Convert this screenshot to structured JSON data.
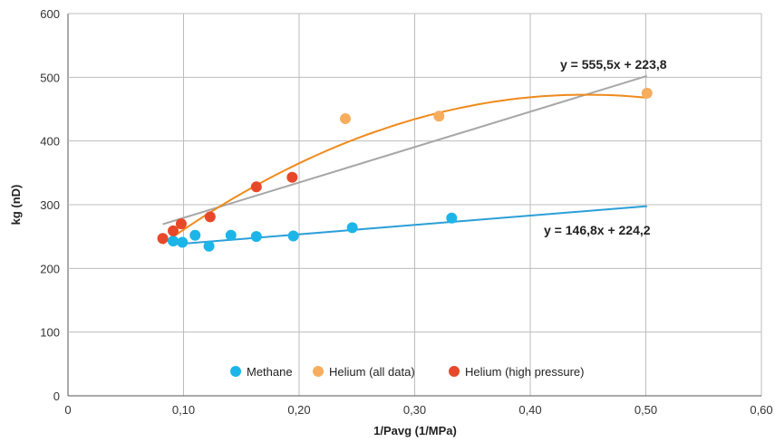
{
  "chart_data": {
    "type": "scatter",
    "title": "",
    "xlabel": "1/Pavg (1/MPa)",
    "ylabel": "kg (nD)",
    "xlim": [
      0,
      0.6
    ],
    "ylim": [
      0,
      600
    ],
    "x_ticks": [
      "0",
      "0,10",
      "0,20",
      "0,30",
      "0,40",
      "0,50",
      "0,60"
    ],
    "y_ticks": [
      "0",
      "100",
      "200",
      "300",
      "400",
      "500",
      "600"
    ],
    "grid": "vertical and horizontal",
    "legend_position": "bottom inside plot",
    "series": [
      {
        "name": "Methane",
        "color": "#1cb5e8",
        "points": [
          [
            0.091,
            243
          ],
          [
            0.099,
            241
          ],
          [
            0.11,
            252
          ],
          [
            0.122,
            235
          ],
          [
            0.141,
            252
          ],
          [
            0.163,
            250
          ],
          [
            0.195,
            251
          ],
          [
            0.246,
            264
          ],
          [
            0.332,
            279
          ]
        ]
      },
      {
        "name": "Helium (all data)",
        "color": "#f7ad5e",
        "points": [
          [
            0.24,
            435
          ],
          [
            0.321,
            439
          ],
          [
            0.501,
            475
          ]
        ]
      },
      {
        "name": "Helium (high pressure)",
        "color": "#e8482a",
        "points": [
          [
            0.082,
            247
          ],
          [
            0.091,
            259
          ],
          [
            0.098,
            270
          ],
          [
            0.123,
            281
          ],
          [
            0.163,
            328
          ],
          [
            0.194,
            343
          ]
        ]
      }
    ],
    "trendlines": [
      {
        "label": "y = 555,5x + 223,8",
        "color": "#a6a6a6",
        "slope": 555.5,
        "intercept": 223.8,
        "x_range": [
          0.082,
          0.501
        ]
      },
      {
        "label": "y = 146,8x + 224,2",
        "color": "#2b9fd8",
        "slope": 146.8,
        "intercept": 224.2,
        "x_range": [
          0.091,
          0.501
        ]
      },
      {
        "color": "#ef8a1c",
        "kind": "polynomial",
        "coefficients": [
          121.8,
          1565,
          -1745
        ],
        "x_range": [
          0.082,
          0.501
        ]
      }
    ]
  }
}
